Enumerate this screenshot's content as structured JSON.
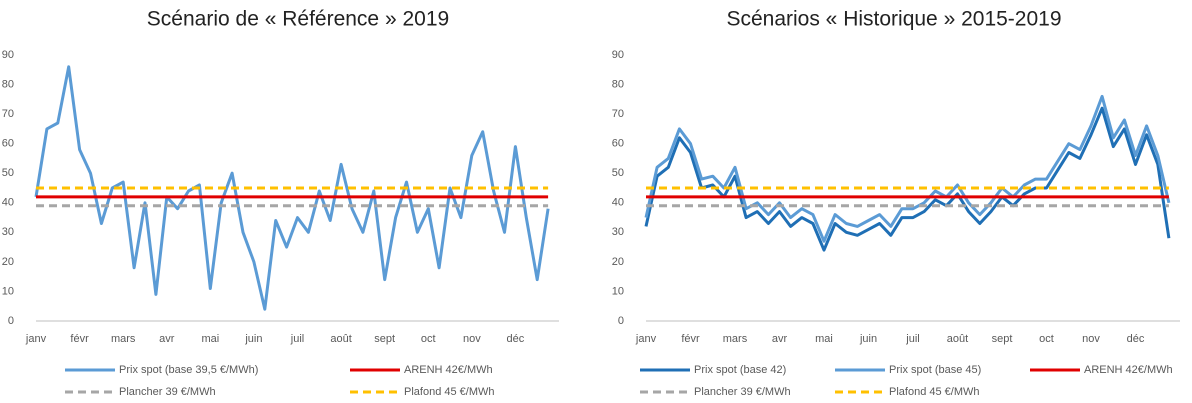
{
  "chart_data": [
    {
      "type": "line",
      "title": "Scénario de « Référence » 2019",
      "categories": [
        "janv",
        null,
        null,
        null,
        "févr",
        null,
        null,
        null,
        "mars",
        null,
        null,
        null,
        "avr",
        null,
        null,
        null,
        "mai",
        null,
        null,
        null,
        "juin",
        null,
        null,
        null,
        "juil",
        null,
        null,
        null,
        "août",
        null,
        null,
        null,
        "sept",
        null,
        null,
        null,
        "oct",
        null,
        null,
        null,
        "nov",
        null,
        null,
        null,
        "déc",
        null,
        null,
        null
      ],
      "ylim": [
        0,
        90
      ],
      "yticks": [
        0,
        10,
        20,
        30,
        40,
        50,
        60,
        70,
        80,
        90
      ],
      "grid": false,
      "series": [
        {
          "name": "Prix spot (base 39,5 €/MWh)",
          "color": "#5b9bd5",
          "dashed": false,
          "values": [
            42,
            65,
            67,
            86,
            58,
            50,
            33,
            45,
            47,
            18,
            40,
            9,
            42,
            38,
            44,
            46,
            11,
            40,
            50,
            30,
            20,
            4,
            34,
            25,
            35,
            30,
            44,
            34,
            53,
            38,
            30,
            44,
            14,
            35,
            47,
            30,
            38,
            18,
            45,
            35,
            56,
            64,
            44,
            30,
            59,
            35,
            14,
            38
          ]
        },
        {
          "name": "ARENH 42€/MWh",
          "color": "#e00000",
          "dashed": false,
          "values": [
            42,
            42,
            42,
            42,
            42,
            42,
            42,
            42,
            42,
            42,
            42,
            42,
            42,
            42,
            42,
            42,
            42,
            42,
            42,
            42,
            42,
            42,
            42,
            42,
            42,
            42,
            42,
            42,
            42,
            42,
            42,
            42,
            42,
            42,
            42,
            42,
            42,
            42,
            42,
            42,
            42,
            42,
            42,
            42,
            42,
            42,
            42,
            42
          ]
        },
        {
          "name": "Plancher 39 €/MWh",
          "color": "#a6a6a6",
          "dashed": true,
          "values": [
            39,
            39,
            39,
            39,
            39,
            39,
            39,
            39,
            39,
            39,
            39,
            39,
            39,
            39,
            39,
            39,
            39,
            39,
            39,
            39,
            39,
            39,
            39,
            39,
            39,
            39,
            39,
            39,
            39,
            39,
            39,
            39,
            39,
            39,
            39,
            39,
            39,
            39,
            39,
            39,
            39,
            39,
            39,
            39,
            39,
            39,
            39,
            39
          ]
        },
        {
          "name": "Plafond 45 €/MWh",
          "color": "#ffc000",
          "dashed": true,
          "values": [
            45,
            45,
            45,
            45,
            45,
            45,
            45,
            45,
            45,
            45,
            45,
            45,
            45,
            45,
            45,
            45,
            45,
            45,
            45,
            45,
            45,
            45,
            45,
            45,
            45,
            45,
            45,
            45,
            45,
            45,
            45,
            45,
            45,
            45,
            45,
            45,
            45,
            45,
            45,
            45,
            45,
            45,
            45,
            45,
            45,
            45,
            45,
            45
          ]
        }
      ]
    },
    {
      "type": "line",
      "title": "Scénarios « Historique » 2015-2019",
      "categories": [
        "janv",
        null,
        null,
        null,
        "févr",
        null,
        null,
        null,
        "mars",
        null,
        null,
        null,
        "avr",
        null,
        null,
        null,
        "mai",
        null,
        null,
        null,
        "juin",
        null,
        null,
        null,
        "juil",
        null,
        null,
        null,
        "août",
        null,
        null,
        null,
        "sept",
        null,
        null,
        null,
        "oct",
        null,
        null,
        null,
        "nov",
        null,
        null,
        null,
        "déc",
        null,
        null,
        null
      ],
      "ylim": [
        0,
        90
      ],
      "yticks": [
        0,
        10,
        20,
        30,
        40,
        50,
        60,
        70,
        80,
        90
      ],
      "grid": false,
      "series": [
        {
          "name": "Prix spot (base 42)",
          "color": "#1f6fb5",
          "dashed": false,
          "values": [
            32,
            49,
            52,
            62,
            57,
            45,
            46,
            42,
            49,
            35,
            37,
            33,
            37,
            32,
            35,
            33,
            24,
            33,
            30,
            29,
            31,
            33,
            29,
            35,
            35,
            37,
            41,
            39,
            43,
            37,
            33,
            37,
            42,
            39,
            43,
            45,
            45,
            51,
            57,
            55,
            63,
            72,
            59,
            65,
            53,
            63,
            53,
            28
          ]
        },
        {
          "name": "Prix spot (base 45)",
          "color": "#5b9bd5",
          "dashed": false,
          "values": [
            35,
            52,
            55,
            65,
            60,
            48,
            49,
            45,
            52,
            38,
            40,
            36,
            40,
            35,
            38,
            36,
            27,
            36,
            33,
            32,
            34,
            36,
            32,
            38,
            38,
            40,
            44,
            42,
            46,
            40,
            36,
            40,
            45,
            42,
            46,
            48,
            48,
            54,
            60,
            58,
            66,
            76,
            62,
            68,
            56,
            66,
            56,
            40
          ]
        },
        {
          "name": "ARENH 42€/MWh",
          "color": "#e00000",
          "dashed": false,
          "values": [
            42,
            42,
            42,
            42,
            42,
            42,
            42,
            42,
            42,
            42,
            42,
            42,
            42,
            42,
            42,
            42,
            42,
            42,
            42,
            42,
            42,
            42,
            42,
            42,
            42,
            42,
            42,
            42,
            42,
            42,
            42,
            42,
            42,
            42,
            42,
            42,
            42,
            42,
            42,
            42,
            42,
            42,
            42,
            42,
            42,
            42,
            42,
            42
          ]
        },
        {
          "name": "Plancher 39 €/MWh",
          "color": "#a6a6a6",
          "dashed": true,
          "values": [
            39,
            39,
            39,
            39,
            39,
            39,
            39,
            39,
            39,
            39,
            39,
            39,
            39,
            39,
            39,
            39,
            39,
            39,
            39,
            39,
            39,
            39,
            39,
            39,
            39,
            39,
            39,
            39,
            39,
            39,
            39,
            39,
            39,
            39,
            39,
            39,
            39,
            39,
            39,
            39,
            39,
            39,
            39,
            39,
            39,
            39,
            39,
            39
          ]
        },
        {
          "name": "Plafond 45 €/MWh",
          "color": "#ffc000",
          "dashed": true,
          "values": [
            45,
            45,
            45,
            45,
            45,
            45,
            45,
            45,
            45,
            45,
            45,
            45,
            45,
            45,
            45,
            45,
            45,
            45,
            45,
            45,
            45,
            45,
            45,
            45,
            45,
            45,
            45,
            45,
            45,
            45,
            45,
            45,
            45,
            45,
            45,
            45,
            45,
            45,
            45,
            45,
            45,
            45,
            45,
            45,
            45,
            45,
            45,
            45
          ]
        }
      ]
    }
  ]
}
